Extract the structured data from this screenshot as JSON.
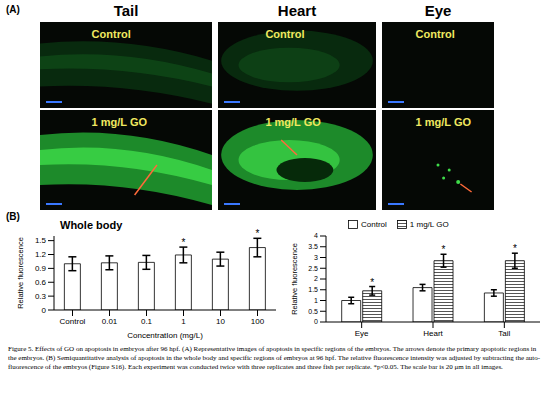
{
  "panel_a": {
    "label": "(A)",
    "columns": [
      "Tail",
      "Heart",
      "Eye"
    ],
    "rows": [
      "Control",
      "1 mg/L GO"
    ]
  },
  "panel_b": {
    "label": "(B)"
  },
  "chart_data": [
    {
      "type": "bar",
      "title": "Whole body",
      "x_label": "ConcentratIon (mg/L)",
      "y_label": "Relative fluorescence",
      "categories": [
        "Control",
        "0.01",
        "0.1",
        "1",
        "10",
        "100"
      ],
      "values": [
        1.0,
        1.02,
        1.03,
        1.19,
        1.1,
        1.35
      ],
      "errors": [
        0.15,
        0.15,
        0.15,
        0.17,
        0.15,
        0.2
      ],
      "annotations": [
        null,
        null,
        null,
        "*",
        null,
        "*"
      ],
      "color": "#ffffff",
      "ylim": [
        0,
        1.6
      ],
      "yticks": [
        0,
        0.3,
        0.6,
        0.9,
        1.2,
        1.5
      ]
    },
    {
      "type": "bar",
      "y_label": "Relative fluorescence",
      "categories": [
        "Eye",
        "Heart",
        "Tail"
      ],
      "series": [
        {
          "name": "Control",
          "color": "#ffffff",
          "values": [
            1.0,
            1.6,
            1.35
          ],
          "errors": [
            0.15,
            0.15,
            0.15
          ]
        },
        {
          "name": "1 mg/L GO",
          "color": "#555555",
          "marker": "hatch",
          "values": [
            1.45,
            2.85,
            2.85
          ],
          "errors": [
            0.2,
            0.3,
            0.35
          ],
          "annotations": [
            "*",
            "*",
            "*"
          ]
        }
      ],
      "ylim": [
        0,
        4
      ],
      "yticks": [
        0,
        0.5,
        1,
        1.5,
        2,
        2.5,
        3,
        3.5,
        4
      ],
      "legend": "top"
    }
  ],
  "caption": "Figure 5. Effects of GO on apoptosis in embryos after 96 hpf. (A) Representative images of apoptosis in specific regions of the embryos. The arrows denote the primary apoptotic regions in the embryos. (B) Semiquantitative analysis of apoptosis in the whole body and specific regions of embryos at 96 hpf. The relative fluorescence intensity was adjusted by subtracting the auto-fluorescence of the embryos (Figure S16). Each experiment was conducted twice with three replicates and three fish per replicate. *p<0.05. The scale bar is 20 μm in all images."
}
